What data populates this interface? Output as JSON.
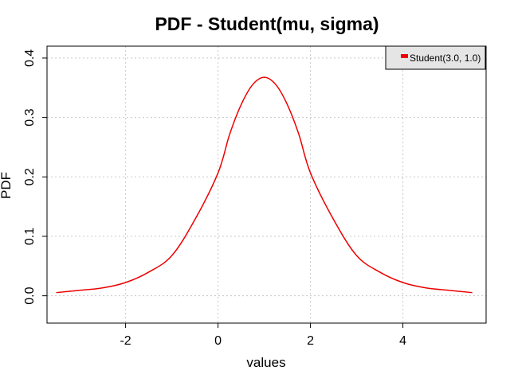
{
  "chart_data": {
    "type": "line",
    "title": "PDF - Student(mu, sigma)",
    "xlabel": "values",
    "ylabel": "PDF",
    "xlim": [
      -3.7,
      5.8
    ],
    "ylim": [
      -0.046,
      0.42
    ],
    "xticks": [
      -2,
      0,
      2,
      4
    ],
    "xtick_labels": [
      "-2",
      "0",
      "2",
      "4"
    ],
    "yticks": [
      0.0,
      0.1,
      0.2,
      0.3,
      0.4
    ],
    "ytick_labels": [
      "0.0",
      "0.1",
      "0.2",
      "0.3",
      "0.4"
    ],
    "grid": true,
    "legend_position": "top-right",
    "series": [
      {
        "name": "Student(3.0, 1.0)",
        "color": "#ee0000",
        "x": [
          -3.5,
          -3.0,
          -2.5,
          -2.0,
          -1.5,
          -1.0,
          -0.5,
          0.0,
          0.25,
          0.5,
          0.75,
          1.0,
          1.25,
          1.5,
          1.75,
          2.0,
          2.5,
          3.0,
          3.5,
          4.0,
          4.5,
          5.0,
          5.5
        ],
        "y": [
          0.0053,
          0.0091,
          0.0132,
          0.0223,
          0.0398,
          0.0675,
          0.1282,
          0.2067,
          0.2713,
          0.3215,
          0.3553,
          0.3676,
          0.3553,
          0.3215,
          0.2713,
          0.2067,
          0.1282,
          0.0675,
          0.0398,
          0.0223,
          0.0132,
          0.0091,
          0.0053
        ]
      }
    ]
  }
}
